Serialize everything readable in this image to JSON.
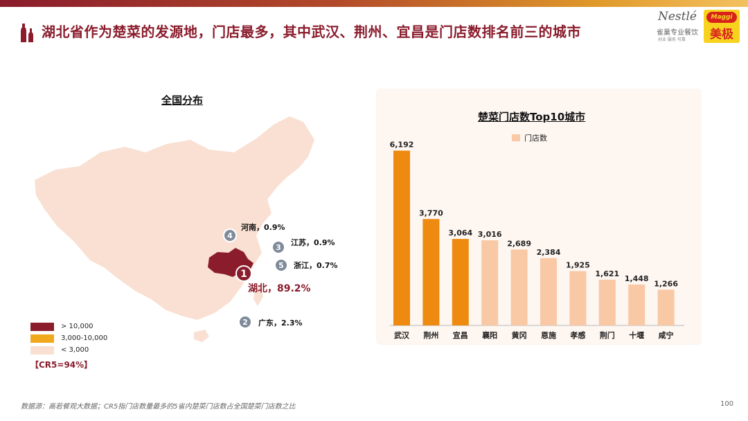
{
  "title": "湖北省作为楚菜的发源地，门店最多，其中武汉、荆州、宜昌是门店数排名前三的城市",
  "logos": {
    "nestle_brand": "Nestlé",
    "nestle_sub": "雀巢专业餐饮",
    "nestle_sub2": "创业  服务  可靠",
    "maggi_top": "Maggi",
    "maggi_bottom": "美极"
  },
  "map": {
    "title": "全国分布",
    "provinces": [
      {
        "rank": "1",
        "label": "湖北，89.2%"
      },
      {
        "rank": "2",
        "label": "广东，2.3%"
      },
      {
        "rank": "3",
        "label": "江苏，0.9%"
      },
      {
        "rank": "4",
        "label": "河南，0.9%"
      },
      {
        "rank": "5",
        "label": "浙江，0.7%"
      }
    ],
    "legend": [
      {
        "label": "> 10,000",
        "color": "#8a1c2c"
      },
      {
        "label": "3,000-10,000",
        "color": "#f0a81c"
      },
      {
        "label": "< 3,000",
        "color": "#f9e0d2"
      }
    ],
    "cr5": "【CR5=94%】"
  },
  "chart_data": {
    "type": "bar",
    "title": "楚菜门店数Top10城市",
    "legend_label": "门店数",
    "legend_position": "top-left",
    "categories": [
      "武汉",
      "荆州",
      "宜昌",
      "襄阳",
      "黄冈",
      "恩施",
      "孝感",
      "荆门",
      "十堰",
      "咸宁"
    ],
    "values": [
      6192,
      3770,
      3064,
      3016,
      2689,
      2384,
      1925,
      1621,
      1448,
      1266
    ],
    "value_labels": [
      "6,192",
      "3,770",
      "3,064",
      "3,016",
      "2,689",
      "2,384",
      "1,925",
      "1,621",
      "1,448",
      "1,266"
    ],
    "ylim": [
      0,
      6500
    ],
    "colors": {
      "highlight": "#ed8a0f",
      "normal": "#f9c8a4"
    },
    "highlight_count": 3,
    "grid": false
  },
  "footnote": "数据源：高若餐观大数据；CR5指门店数量最多的5省内楚菜门店数占全国楚菜门店数之比",
  "page_number": "100"
}
